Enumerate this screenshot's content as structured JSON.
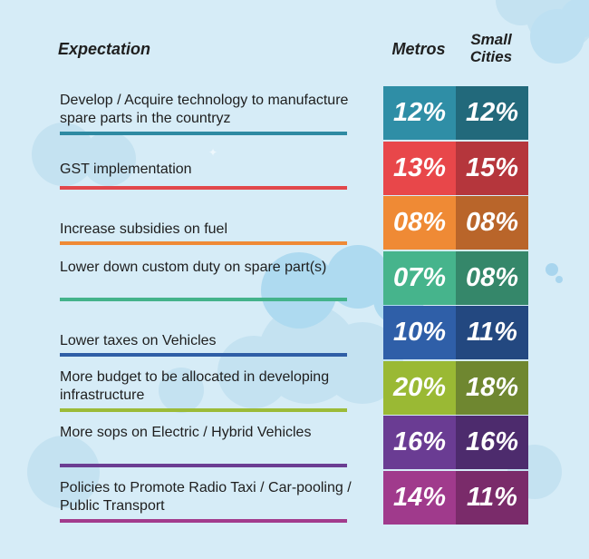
{
  "headers": {
    "expectation": "Expectation",
    "metros": "Metros",
    "small_cities": "Small Cities"
  },
  "chart_data": {
    "type": "table",
    "columns": [
      "Metros",
      "Small Cities"
    ],
    "rows": [
      {
        "expectation": "Develop / Acquire technology to manufacture spare parts in the countryz",
        "metros": "12%",
        "small": "12%",
        "color_metros": "#2f8ea6",
        "color_small": "#22697b",
        "line_color": "#2e8aa2"
      },
      {
        "expectation": "GST implementation",
        "metros": "13%",
        "small": "15%",
        "color_metros": "#e8474a",
        "color_small": "#b5363c",
        "line_color": "#e2474b"
      },
      {
        "expectation": "Increase subsidies on fuel",
        "metros": "08%",
        "small": "08%",
        "color_metros": "#ef8a35",
        "color_small": "#b9652a",
        "line_color": "#ef8a35"
      },
      {
        "expectation": "Lower down custom duty on spare part(s)",
        "metros": "07%",
        "small": "08%",
        "color_metros": "#46b48c",
        "color_small": "#35876a",
        "line_color": "#44b38b"
      },
      {
        "expectation": "Lower taxes on Vehicles",
        "metros": "10%",
        "small": "11%",
        "color_metros": "#2f5fa8",
        "color_small": "#234880",
        "line_color": "#2f5ea6"
      },
      {
        "expectation": "More budget to be allocated in developing infrastructure",
        "metros": "20%",
        "small": "18%",
        "color_metros": "#9ab934",
        "color_small": "#6f8730",
        "line_color": "#9cbb38"
      },
      {
        "expectation": "More sops on Electric / Hybrid Vehicles",
        "metros": "16%",
        "small": "16%",
        "color_metros": "#6a3c93",
        "color_small": "#4d2b6d",
        "line_color": "#6b3d92"
      },
      {
        "expectation": "Policies to Promote Radio Taxi / Car-pooling / Public Transport",
        "metros": "14%",
        "small": "11%",
        "color_metros": "#a03a8c",
        "color_small": "#7a2b6a",
        "line_color": "#a23b8d"
      }
    ]
  }
}
